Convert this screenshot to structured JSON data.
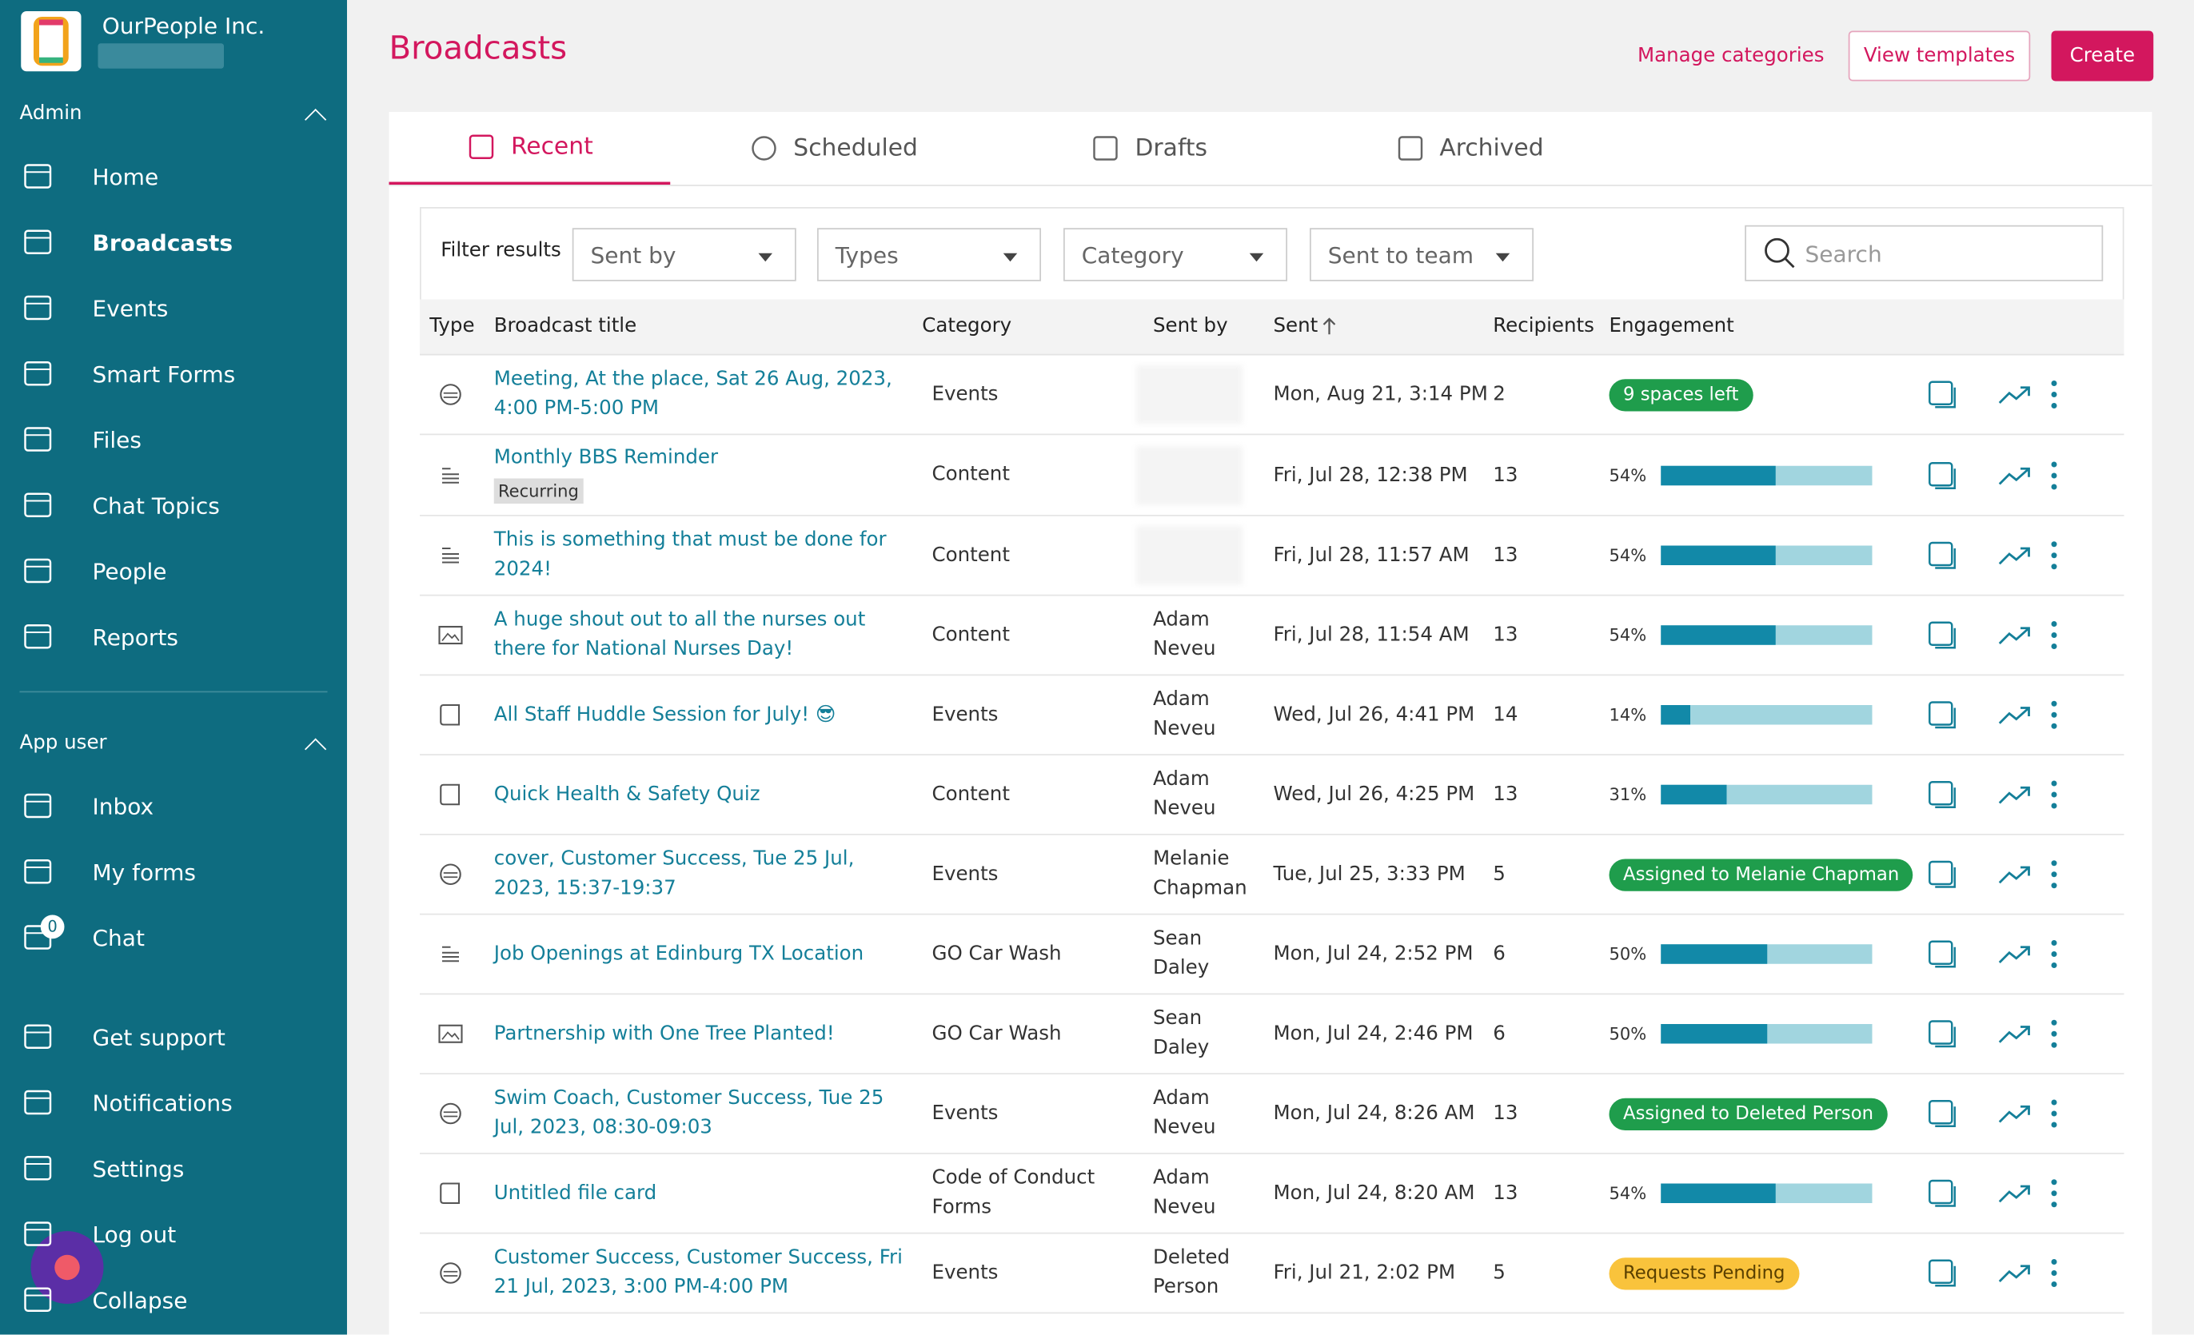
{
  "org": {
    "name": "OurPeople Inc."
  },
  "sidebar": {
    "admin_label": "Admin",
    "admin_items": [
      "Home",
      "Broadcasts",
      "Events",
      "Smart Forms",
      "Files",
      "Chat Topics",
      "People",
      "Reports"
    ],
    "app_label": "App user",
    "app_items": [
      "Inbox",
      "My forms",
      "Chat"
    ],
    "chat_badge": "0",
    "bottom_items": [
      "Get support",
      "Notifications",
      "Settings",
      "Log out",
      "Collapse"
    ]
  },
  "header": {
    "title": "Broadcasts",
    "actions": [
      "Manage categories",
      "View templates",
      "Create"
    ]
  },
  "tabs": [
    "Recent",
    "Scheduled",
    "Drafts",
    "Archived"
  ],
  "filters": {
    "label": "Filter results",
    "dropdowns": [
      "Sent by",
      "Types",
      "Category",
      "Sent to team"
    ],
    "search": "Search"
  },
  "table": {
    "columns": [
      "Type",
      "Broadcast title",
      "Category",
      "Sent by",
      "Sent",
      "Recipients",
      "Engagement"
    ],
    "rows": [
      {
        "title": "Meeting, At the place, Sat 26 Aug, 2023, 4:00 PM-5:00 PM",
        "category": "Events",
        "sent_by": null,
        "sent": "Mon, Aug 21, 3:14 PM",
        "recipients": "2",
        "badge": {
          "label": "9 spaces left",
          "color": "#1f9d4c"
        }
      },
      {
        "title": "Monthly BBS Reminder",
        "tag": "Recurring",
        "category": "Content",
        "sent_by": null,
        "sent": "Fri, Jul 28, 12:38 PM",
        "recipients": "13",
        "engagement": {
          "value": 54,
          "label": "54%"
        }
      },
      {
        "title": "This is something that must be done for 2024!",
        "category": "Content",
        "sent_by": null,
        "sent": "Fri, Jul 28, 11:57 AM",
        "recipients": "13",
        "engagement": {
          "value": 54,
          "label": "54%"
        }
      },
      {
        "title": "A huge shout out to all the nurses out there for National Nurses Day!",
        "category": "Content",
        "sent_by": "Adam Neveu",
        "sent": "Fri, Jul 28, 11:54 AM",
        "recipients": "13",
        "engagement": {
          "value": 54,
          "label": "54%"
        }
      },
      {
        "title": "All Staff Huddle Session for July! 😎",
        "category": "Events",
        "sent_by": "Adam Neveu",
        "sent": "Wed, Jul 26, 4:41 PM",
        "recipients": "14",
        "engagement": {
          "value": 14,
          "label": "14%"
        }
      },
      {
        "title": "Quick Health & Safety Quiz",
        "category": "Content",
        "sent_by": "Adam Neveu",
        "sent": "Wed, Jul 26, 4:25 PM",
        "recipients": "13",
        "engagement": {
          "value": 31,
          "label": "31%"
        }
      },
      {
        "title": "cover, Customer Success, Tue 25 Jul, 2023, 15:37-19:37",
        "category": "Events",
        "sent_by": "Melanie Chapman",
        "sent": "Tue, Jul 25, 3:33 PM",
        "recipients": "5",
        "badge": {
          "label": "Assigned to Melanie Chapman",
          "color": "#1f9d4c"
        }
      },
      {
        "title": "Job Openings at Edinburg TX Location",
        "category": "GO Car Wash",
        "sent_by": "Sean Daley",
        "sent": "Mon, Jul 24, 2:52 PM",
        "recipients": "6",
        "engagement": {
          "value": 50,
          "label": "50%"
        }
      },
      {
        "title": "Partnership with One Tree Planted!",
        "category": "GO Car Wash",
        "sent_by": "Sean Daley",
        "sent": "Mon, Jul 24, 2:46 PM",
        "recipients": "6",
        "engagement": {
          "value": 50,
          "label": "50%"
        }
      },
      {
        "title": "Swim Coach, Customer Success, Tue 25 Jul, 2023, 08:30-09:03",
        "category": "Events",
        "sent_by": "Adam Neveu",
        "sent": "Mon, Jul 24, 8:26 AM",
        "recipients": "13",
        "badge": {
          "label": "Assigned to Deleted Person",
          "color": "#1f9d4c"
        }
      },
      {
        "title": "Untitled file card",
        "category": "Code of Conduct Forms",
        "sent_by": "Adam Neveu",
        "sent": "Mon, Jul 24, 8:20 AM",
        "recipients": "13",
        "engagement": {
          "value": 54,
          "label": "54%"
        }
      },
      {
        "title": "Customer Success, Customer Success, Fri 21 Jul, 2023, 3:00 PM-4:00 PM",
        "category": "Events",
        "sent_by": "Deleted Person",
        "sent": "Fri, Jul 21, 2:02 PM",
        "recipients": "5",
        "badge": {
          "label": "Requests Pending",
          "color": "#f9c33c",
          "text": "#5a4000"
        }
      }
    ]
  }
}
